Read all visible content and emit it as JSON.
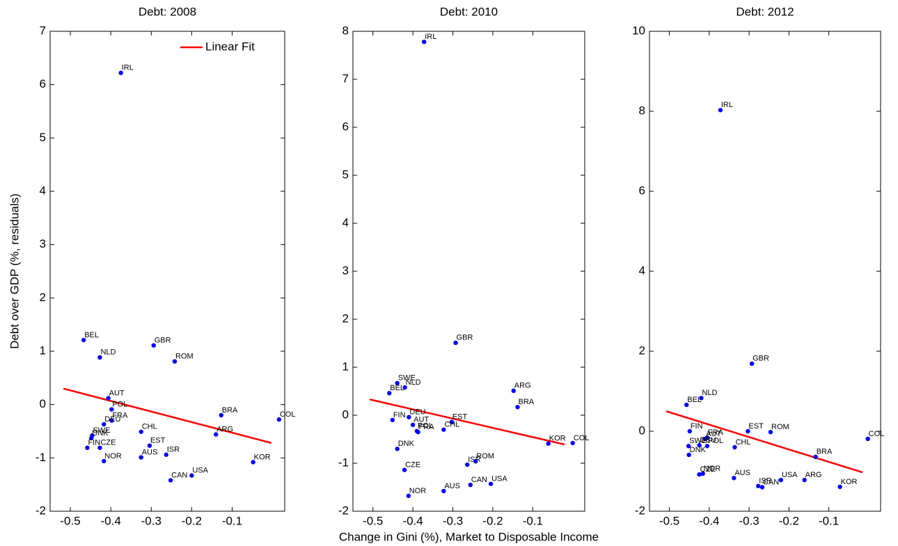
{
  "chart_data": [
    {
      "type": "scatter",
      "title": "Debt: 2008",
      "y_label": "Debt over GDP (%, residuals)",
      "point_labels": [
        "IRL",
        "BEL",
        "NLD",
        "GBR",
        "ROM",
        "AUT",
        "POL",
        "FRA",
        "DEU",
        "CHL",
        "BRA",
        "COL",
        "ARG",
        "SWE",
        "DNK",
        "FIN",
        "CZE",
        "EST",
        "AUS",
        "ISR",
        "NOR",
        "KOR",
        "CAN",
        "USA"
      ],
      "x": [
        -0.375,
        -0.467,
        -0.427,
        -0.294,
        -0.242,
        -0.406,
        -0.398,
        -0.398,
        -0.417,
        -0.325,
        -0.127,
        0.016,
        -0.14,
        -0.446,
        -0.448,
        -0.458,
        -0.427,
        -0.304,
        -0.325,
        -0.263,
        -0.417,
        -0.048,
        -0.252,
        -0.2
      ],
      "values": [
        6.22,
        1.21,
        0.885,
        1.11,
        0.81,
        0.12,
        -0.09,
        -0.3,
        -0.37,
        -0.51,
        -0.2,
        -0.28,
        -0.56,
        -0.58,
        -0.63,
        -0.81,
        -0.81,
        -0.77,
        -0.99,
        -0.94,
        -1.06,
        -1.08,
        -1.42,
        -1.33
      ],
      "color": "#0000ff",
      "series": [
        {
          "name": "Linear Fit",
          "color": "#ff0000",
          "x": [
            -0.517,
            -0.003
          ],
          "values": [
            0.3,
            -0.72
          ]
        }
      ],
      "xlim": [
        -0.55,
        0.03
      ],
      "xticks": [
        -0.5,
        -0.4,
        -0.3,
        -0.2,
        -0.1
      ],
      "ylim": [
        -2,
        7
      ],
      "yticks": [
        -2,
        -1,
        0,
        1,
        2,
        3,
        4,
        5,
        6,
        7
      ]
    },
    {
      "type": "scatter",
      "title": "Debt: 2010",
      "x_label": "Change in Gini (%), Market to Disposable Income",
      "point_labels": [
        "IRL",
        "GBR",
        "SWE",
        "NLD",
        "BEL",
        "ARG",
        "BRA",
        "DEU",
        "FIN",
        "AUT",
        "EST",
        "POL",
        "FRA",
        "CHL",
        "KOR",
        "COL",
        "DNK",
        "ISR",
        "ROM",
        "CZE",
        "CAN",
        "USA",
        "AUS",
        "NOR"
      ],
      "x": [
        -0.372,
        -0.293,
        -0.439,
        -0.42,
        -0.459,
        -0.148,
        -0.138,
        -0.41,
        -0.451,
        -0.4,
        -0.303,
        -0.39,
        -0.387,
        -0.323,
        -0.061,
        0.0,
        -0.439,
        -0.264,
        -0.243,
        -0.421,
        -0.256,
        -0.205,
        -0.323,
        -0.411
      ],
      "values": [
        7.78,
        1.51,
        0.67,
        0.58,
        0.46,
        0.51,
        0.17,
        -0.04,
        -0.1,
        -0.2,
        -0.14,
        -0.33,
        -0.35,
        -0.3,
        -0.59,
        -0.58,
        -0.7,
        -1.03,
        -0.96,
        -1.14,
        -1.45,
        -1.43,
        -1.58,
        -1.68
      ],
      "color": "#0000ff",
      "series": [
        {
          "color": "#ff0000",
          "x": [
            -0.508,
            -0.02
          ],
          "values": [
            0.33,
            -0.61
          ]
        }
      ],
      "xlim": [
        -0.55,
        0.03
      ],
      "xticks": [
        -0.5,
        -0.4,
        -0.3,
        -0.2,
        -0.1
      ],
      "ylim": [
        -2,
        8
      ],
      "yticks": [
        -2,
        -1,
        0,
        1,
        2,
        3,
        4,
        5,
        6,
        7,
        8
      ]
    },
    {
      "type": "scatter",
      "title": "Debt: 2012",
      "point_labels": [
        "IRL",
        "GBR",
        "NLD",
        "BEL",
        "FIN",
        "EST",
        "ROM",
        "COL",
        "FRA",
        "AUT",
        "DEU",
        "SWE",
        "POL",
        "CHL",
        "DNK",
        "BRA",
        "CZE",
        "NOR",
        "AUS",
        "USA",
        "ARG",
        "ISR",
        "CAN",
        "KOR"
      ],
      "x": [
        -0.372,
        -0.293,
        -0.42,
        -0.457,
        -0.449,
        -0.303,
        -0.246,
        -0.002,
        -0.405,
        -0.41,
        -0.425,
        -0.452,
        -0.405,
        -0.336,
        -0.451,
        -0.133,
        -0.425,
        -0.416,
        -0.338,
        -0.22,
        -0.161,
        -0.277,
        -0.267,
        -0.072
      ],
      "values": [
        8.03,
        1.69,
        0.83,
        0.66,
        0.0,
        0.0,
        -0.02,
        -0.19,
        -0.16,
        -0.19,
        -0.35,
        -0.37,
        -0.37,
        -0.4,
        -0.59,
        -0.64,
        -1.08,
        -1.06,
        -1.17,
        -1.22,
        -1.22,
        -1.37,
        -1.4,
        -1.39
      ],
      "color": "#0000ff",
      "series": [
        {
          "color": "#ff0000",
          "x": [
            -0.508,
            -0.015
          ],
          "values": [
            0.5,
            -1.03
          ]
        }
      ],
      "xlim": [
        -0.55,
        0.03
      ],
      "xticks": [
        -0.5,
        -0.4,
        -0.3,
        -0.2,
        -0.1
      ],
      "ylim": [
        -2,
        10
      ],
      "yticks": [
        -2,
        0,
        2,
        4,
        6,
        8,
        10
      ]
    }
  ]
}
